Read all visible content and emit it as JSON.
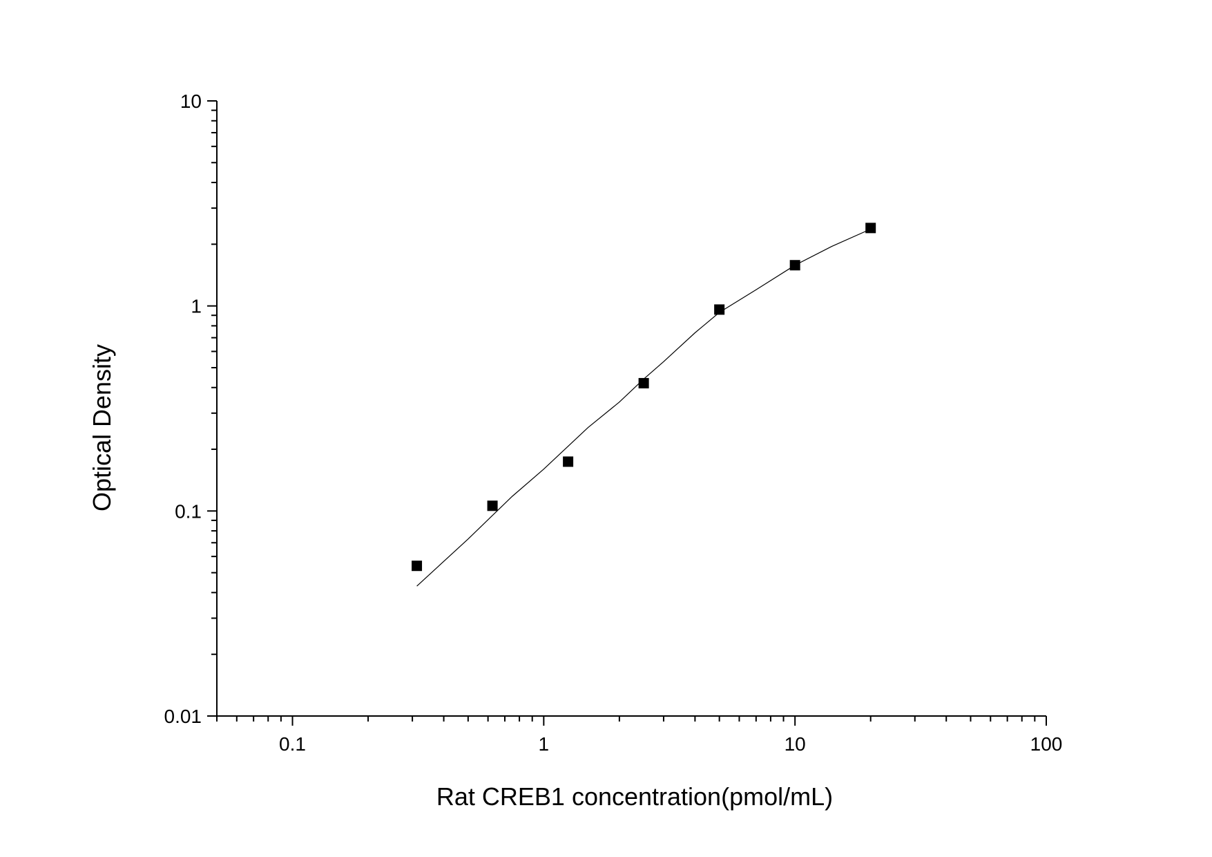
{
  "chart_data": {
    "type": "scatter",
    "xscale": "log",
    "yscale": "log",
    "xlim": [
      0.05,
      100
    ],
    "ylim": [
      0.01,
      10
    ],
    "xlabel": "Rat CREB1 concentration(pmol/mL)",
    "ylabel": "Optical Density",
    "xticks": [
      {
        "value": 0.1,
        "label": "0.1"
      },
      {
        "value": 1,
        "label": "1"
      },
      {
        "value": 10,
        "label": "10"
      },
      {
        "value": 100,
        "label": "100"
      }
    ],
    "yticks": [
      {
        "value": 0.01,
        "label": "0.01"
      },
      {
        "value": 0.1,
        "label": "0.1"
      },
      {
        "value": 1,
        "label": "1"
      },
      {
        "value": 10,
        "label": "10"
      }
    ],
    "grid": false,
    "series": [
      {
        "kind": "points",
        "marker": "square",
        "color": "#000000",
        "x": [
          0.3125,
          0.625,
          1.25,
          2.5,
          5,
          10,
          20
        ],
        "y": [
          0.054,
          0.106,
          0.174,
          0.42,
          0.96,
          1.58,
          2.4
        ]
      },
      {
        "kind": "fit-line",
        "color": "#000000",
        "x": [
          0.3125,
          0.5,
          0.75,
          1,
          1.5,
          2,
          2.5,
          3,
          4,
          5,
          7,
          10,
          14,
          20
        ],
        "y": [
          0.043,
          0.073,
          0.118,
          0.16,
          0.255,
          0.34,
          0.44,
          0.535,
          0.74,
          0.93,
          1.2,
          1.58,
          1.95,
          2.37
        ]
      }
    ]
  }
}
